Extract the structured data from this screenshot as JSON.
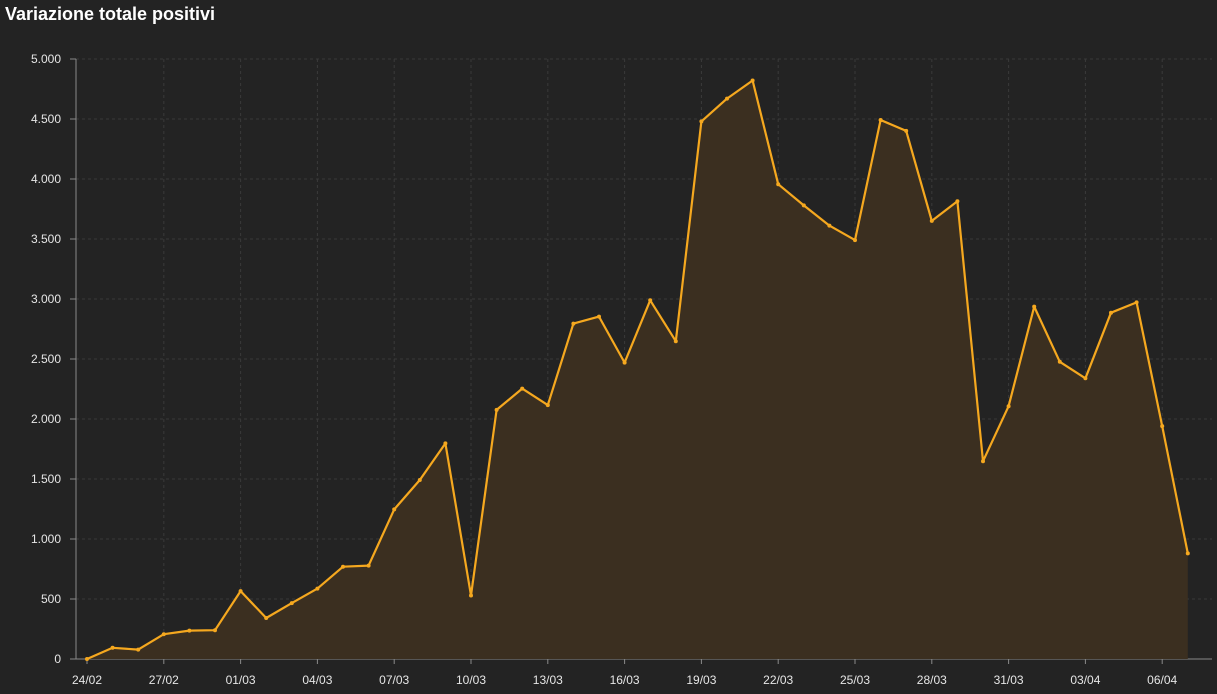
{
  "chart_data": {
    "type": "area",
    "title": "Variazione totale positivi",
    "xlabel": "",
    "ylabel": "",
    "ylim": [
      0,
      5000
    ],
    "yticks": [
      0,
      500,
      1000,
      1500,
      2000,
      2500,
      3000,
      3500,
      4000,
      4500,
      5000
    ],
    "ytick_labels": [
      "0",
      "500",
      "1.000",
      "1.500",
      "2.000",
      "2.500",
      "3.000",
      "3.500",
      "4.000",
      "4.500",
      "5.000"
    ],
    "x": [
      "24/02",
      "25/02",
      "26/02",
      "27/02",
      "28/02",
      "29/02",
      "01/03",
      "02/03",
      "03/03",
      "04/03",
      "05/03",
      "06/03",
      "07/03",
      "08/03",
      "09/03",
      "10/03",
      "11/03",
      "12/03",
      "13/03",
      "14/03",
      "15/03",
      "16/03",
      "17/03",
      "18/03",
      "19/03",
      "20/03",
      "21/03",
      "22/03",
      "23/03",
      "24/03",
      "25/03",
      "26/03",
      "27/03",
      "28/03",
      "29/03",
      "30/03",
      "31/03",
      "01/04",
      "02/04",
      "03/04",
      "04/04",
      "05/04",
      "06/04",
      "07/04"
    ],
    "xtick_labels": [
      "24/02",
      "27/02",
      "01/03",
      "04/03",
      "07/03",
      "10/03",
      "13/03",
      "16/03",
      "19/03",
      "22/03",
      "25/03",
      "28/03",
      "31/03",
      "03/04",
      "06/04"
    ],
    "series": [
      {
        "values": [
          0,
          93,
          78,
          207,
          237,
          240,
          566,
          342,
          466,
          587,
          769,
          778,
          1247,
          1492,
          1797,
          529,
          2076,
          2253,
          2116,
          2795,
          2853,
          2470,
          2989,
          2648,
          4480,
          4670,
          4821,
          3957,
          3780,
          3612,
          3491,
          4492,
          4401,
          3651,
          3815,
          1648,
          2107,
          2937,
          2477,
          2339,
          2886,
          2972,
          1941,
          880
        ]
      }
    ],
    "colors": {
      "background": "#232323",
      "line": "#f5a81f",
      "fill": "#3b2f20",
      "grid": "#3a3a3a",
      "axis": "#8a8a8a",
      "text": "#e6e6e6",
      "title": "#ffffff"
    },
    "grid": true,
    "legend": "none"
  }
}
